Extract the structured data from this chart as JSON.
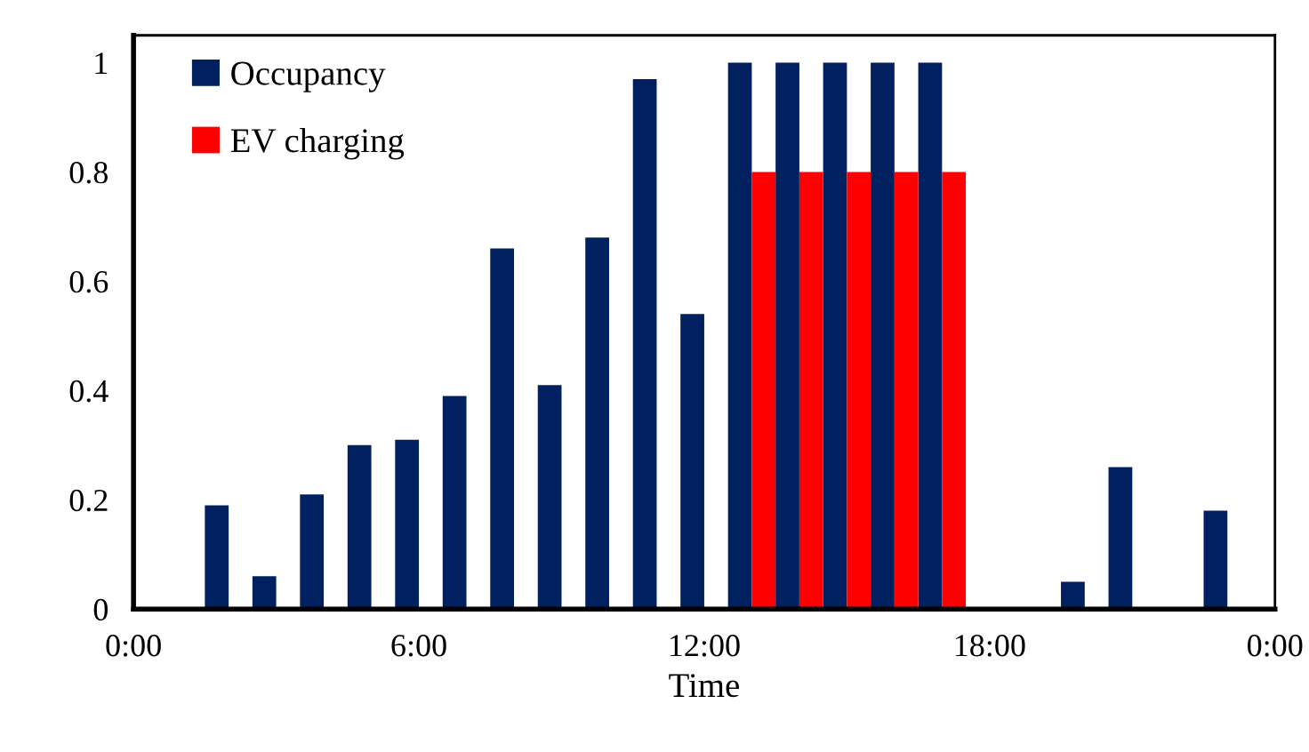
{
  "chart_data": {
    "type": "bar",
    "xlabel": "Time",
    "xlim": [
      0,
      24
    ],
    "xticks": [
      {
        "value": 0,
        "label": "0:00"
      },
      {
        "value": 6,
        "label": "6:00"
      },
      {
        "value": 12,
        "label": "12:00"
      },
      {
        "value": 18,
        "label": "18:00"
      },
      {
        "value": 24,
        "label": "0:00"
      }
    ],
    "ylim": [
      0,
      1.05
    ],
    "yticks": [
      0,
      0.2,
      0.4,
      0.6,
      0.8,
      1
    ],
    "grid": false,
    "legend": "top left",
    "series": [
      {
        "name": "Occupancy",
        "color": "#002060",
        "x": [
          2,
          3,
          4,
          5,
          6,
          7,
          8,
          9,
          10,
          11,
          12,
          13,
          14,
          15,
          16,
          17,
          18,
          19,
          20,
          21,
          22,
          23
        ],
        "values": [
          0.19,
          0.06,
          0.21,
          0.3,
          0.31,
          0.39,
          0.66,
          0.41,
          0.68,
          0.97,
          0.54,
          1,
          1,
          1,
          1,
          1,
          0,
          0,
          0.05,
          0.26,
          0,
          0.18
        ]
      },
      {
        "name": "EV charging",
        "color": "#ff0000",
        "x": [
          13,
          14,
          15,
          16,
          17
        ],
        "values": [
          0.8,
          0.8,
          0.8,
          0.8,
          0.8
        ]
      }
    ]
  }
}
